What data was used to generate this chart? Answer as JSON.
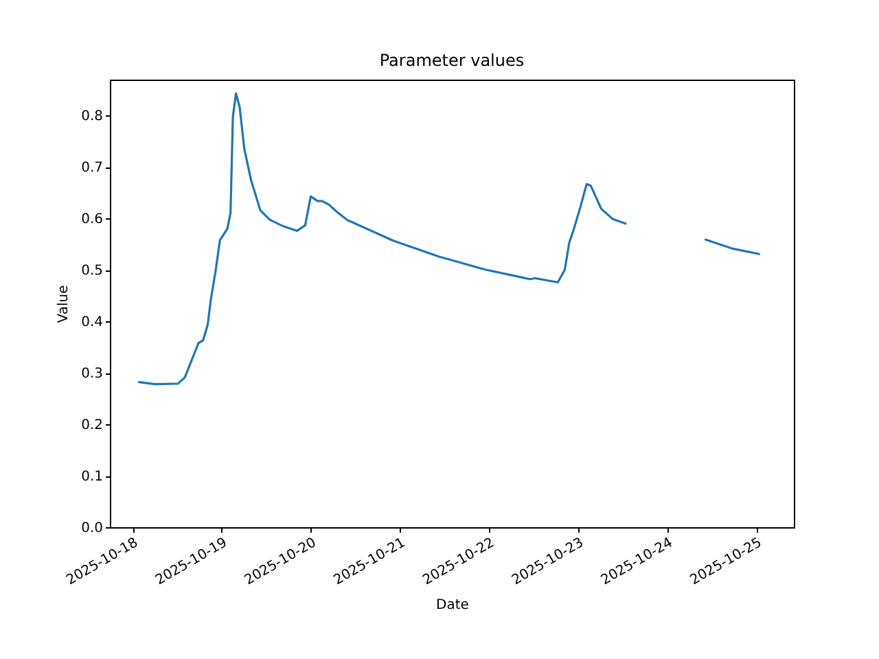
{
  "chart_data": {
    "type": "line",
    "title": "Parameter values",
    "xlabel": "Date",
    "ylabel": "Value",
    "series": [
      {
        "color": "#1f77b4",
        "x": [
          "2025-10-18T01:44",
          "2025-10-18T06:00",
          "2025-10-18T12:12",
          "2025-10-18T14:03",
          "2025-10-18T16:32",
          "2025-10-18T17:45",
          "2025-10-18T18:58",
          "2025-10-18T20:14",
          "2025-10-18T21:04",
          "2025-10-18T22:18",
          "2025-10-18T23:31",
          "2025-10-19T01:30",
          "2025-10-19T02:22",
          "2025-10-19T03:00",
          "2025-10-19T03:50",
          "2025-10-19T04:50",
          "2025-10-19T06:04",
          "2025-10-19T07:55",
          "2025-10-19T10:24",
          "2025-10-19T12:52",
          "2025-10-19T16:34",
          "2025-10-19T20:15",
          "2025-10-19T22:29",
          "2025-10-19T23:58",
          "2025-10-20T01:48",
          "2025-10-20T03:01",
          "2025-10-20T04:52",
          "2025-10-20T07:20",
          "2025-10-20T09:49",
          "2025-10-20T22:09",
          "2025-10-21T10:28",
          "2025-10-21T22:48",
          "2025-10-22T11:08",
          "2025-10-22T12:21",
          "2025-10-22T18:32",
          "2025-10-22T20:23",
          "2025-10-22T21:36",
          "2025-10-22T22:49",
          "2025-10-23T00:40",
          "2025-10-23T02:17",
          "2025-10-23T03:23",
          "2025-10-23T06:13",
          "2025-10-23T09:19",
          "2025-10-23T12:46"
        ],
        "values": [
          0.282,
          0.278,
          0.279,
          0.291,
          0.336,
          0.358,
          0.363,
          0.394,
          0.443,
          0.496,
          0.558,
          0.58,
          0.611,
          0.798,
          0.843,
          0.816,
          0.736,
          0.674,
          0.616,
          0.598,
          0.585,
          0.576,
          0.587,
          0.643,
          0.634,
          0.634,
          0.627,
          0.611,
          0.597,
          0.557,
          0.526,
          0.501,
          0.482,
          0.484,
          0.476,
          0.5,
          0.553,
          0.579,
          0.624,
          0.667,
          0.664,
          0.619,
          0.599,
          0.59
        ]
      },
      {
        "color": "#1f77b4",
        "x": [
          "2025-10-24T10:19",
          "2025-10-24T17:21",
          "2025-10-25T00:45"
        ],
        "values": [
          0.559,
          0.542,
          0.531
        ]
      }
    ],
    "xlim": [
      "2025-10-17T17:52",
      "2025-10-25T10:06"
    ],
    "xticks": [
      "2025-10-18",
      "2025-10-19",
      "2025-10-20",
      "2025-10-21",
      "2025-10-22",
      "2025-10-23",
      "2025-10-24",
      "2025-10-25"
    ],
    "ylim": [
      0,
      0.87
    ],
    "yticks": [
      {
        "value": 0,
        "label": "0.0"
      },
      {
        "value": 0.1,
        "label": "0.1"
      },
      {
        "value": 0.2,
        "label": "0.2"
      },
      {
        "value": 0.3,
        "label": "0.3"
      },
      {
        "value": 0.4,
        "label": "0.4"
      },
      {
        "value": 0.5,
        "label": "0.5"
      },
      {
        "value": 0.6,
        "label": "0.6"
      },
      {
        "value": 0.7,
        "label": "0.7"
      },
      {
        "value": 0.8,
        "label": "0.8"
      }
    ],
    "grid": false,
    "marker": "none",
    "line_style": "solid"
  }
}
